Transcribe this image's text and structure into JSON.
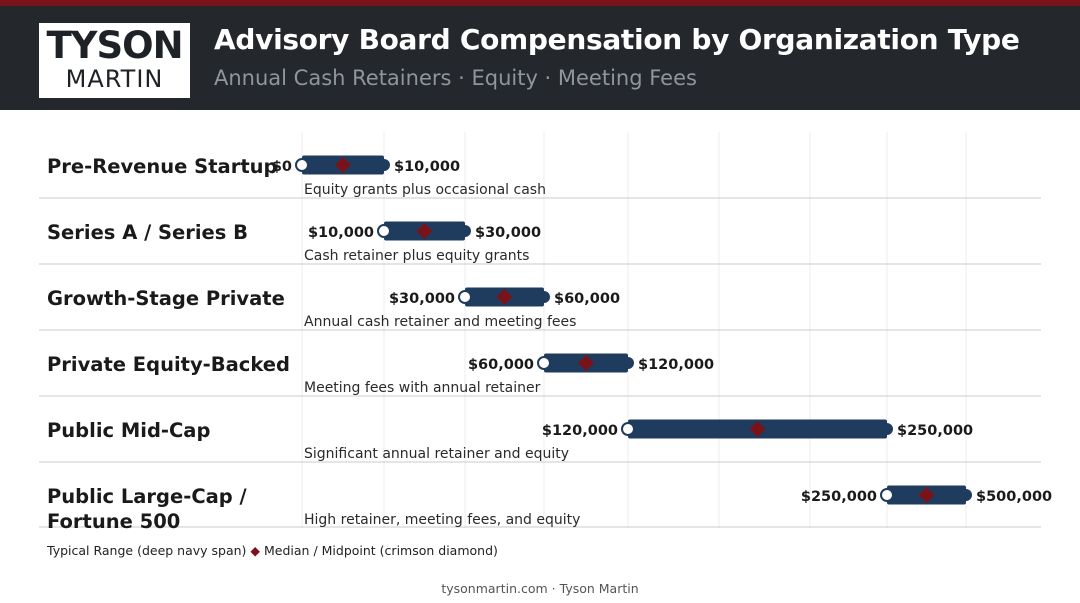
{
  "brand": {
    "logo_top": "TYSON",
    "logo_bottom": "MARTIN"
  },
  "header": {
    "title": "Advisory Board Compensation by Organization Type",
    "subtitle": "Annual Cash Retainers · Equity · Meeting Fees"
  },
  "colors": {
    "header_bg": "#24282d",
    "accent": "#7a1319",
    "bar": "#1f3b5e",
    "median": "#7a1319",
    "divider": "#c9cbd3",
    "grid": "#ececef"
  },
  "chart_data": {
    "type": "bar",
    "orientation": "horizontal-range",
    "categories": [
      "Pre-Revenue Startup",
      "Series A / Series B",
      "Growth-Stage Private",
      "Private Equity-Backed",
      "Public Mid-Cap",
      "Public Large-Cap / Fortune 500"
    ],
    "series": [
      {
        "name": "Typical Range (deep navy span)",
        "ranges": [
          [
            0,
            10000
          ],
          [
            10000,
            30000
          ],
          [
            30000,
            60000
          ],
          [
            60000,
            120000
          ],
          [
            120000,
            250000
          ],
          [
            250000,
            500000
          ]
        ],
        "low_labels": [
          "$0",
          "$10,000",
          "$30,000",
          "$60,000",
          "$120,000",
          "$250,000"
        ],
        "high_labels": [
          "$10,000",
          "$30,000",
          "$60,000",
          "$120,000",
          "$250,000",
          "$500,000"
        ]
      },
      {
        "name": "Median / Midpoint (crimson diamond)",
        "values": [
          5000,
          20000,
          45000,
          90000,
          185000,
          375000
        ]
      }
    ],
    "descriptions": [
      "Equity grants plus occasional cash",
      "Cash retainer plus equity grants",
      "Annual cash retainer and meeting fees",
      "Meeting fees with annual retainer",
      "Significant annual retainer and equity",
      "High retainer, meeting fees, and equity"
    ],
    "xlabel": "",
    "ylabel": "",
    "grid": true,
    "legend_position": "bottom-left"
  },
  "legend": {
    "range_label": "Typical Range (deep navy span)",
    "diamond_symbol": "◆",
    "median_label": "Median / Midpoint (crimson diamond)"
  },
  "footer": {
    "site": "tysonmartin.com",
    "separator": "·",
    "author": "Tyson Martin"
  }
}
